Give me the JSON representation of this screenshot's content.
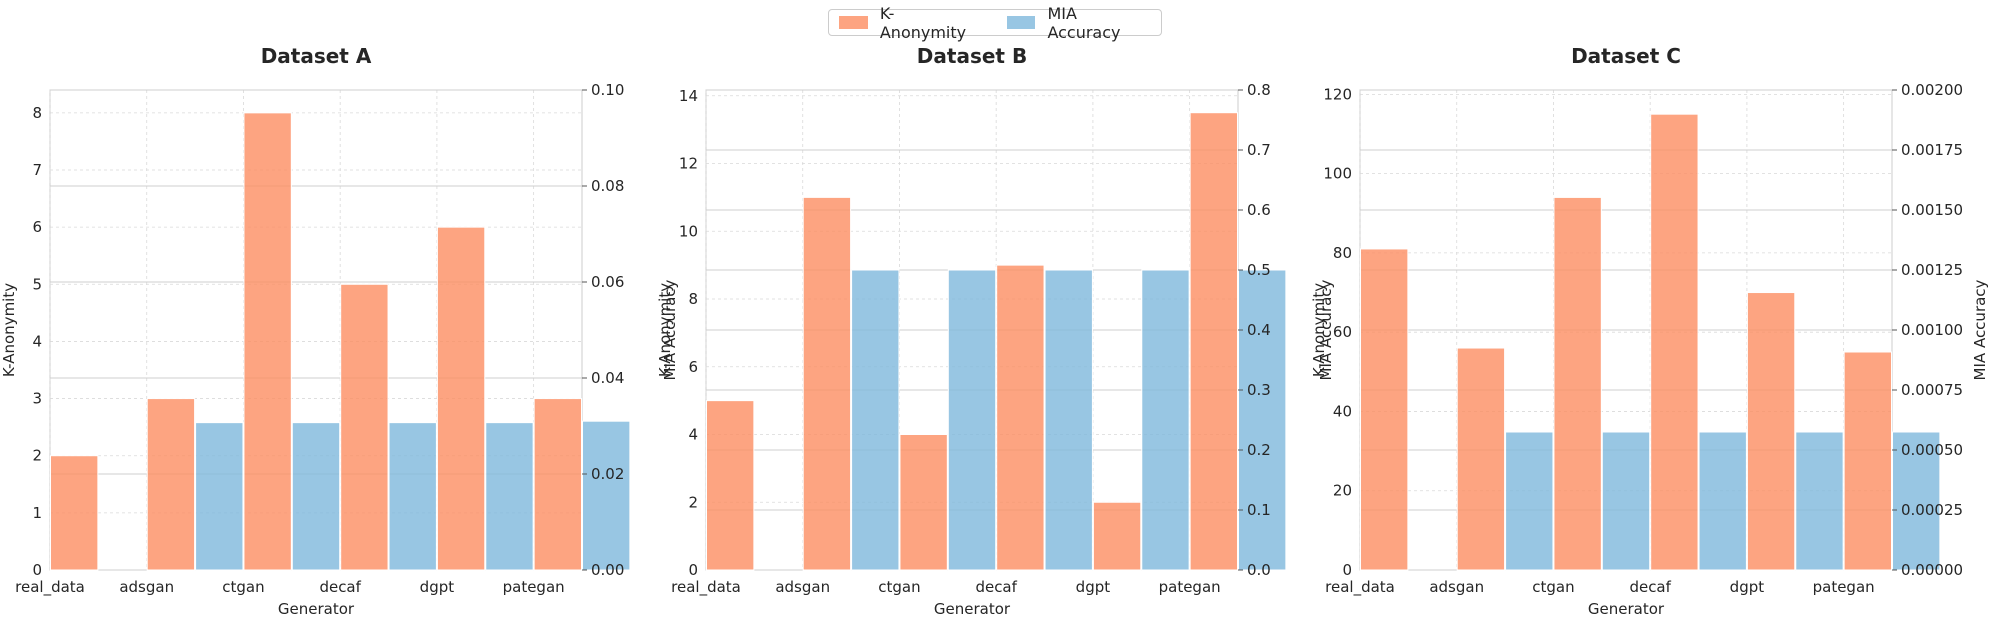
{
  "legend": {
    "k_label": "K-Anonymity",
    "mia_label": "MIA Accuracy",
    "placement": "top-center"
  },
  "colors": {
    "k_anonymity": "#fc8d62",
    "mia_accuracy": "#7eb8dc"
  },
  "chart_data": [
    {
      "type": "bar",
      "title": "Dataset A",
      "xlabel": "Generator",
      "ylabel": "K-Anonymity",
      "ylabel_right": "MIA Accuracy",
      "categories": [
        "real_data",
        "adsgan",
        "ctgan",
        "decaf",
        "dgpt",
        "pategan"
      ],
      "ylim": [
        0,
        8.4
      ],
      "yticks": [
        "0",
        "1",
        "2",
        "3",
        "4",
        "5",
        "6",
        "7",
        "8"
      ],
      "ylim_right": [
        0,
        0.1
      ],
      "yticks_right": [
        "0.00",
        "0.02",
        "0.04",
        "0.06",
        "0.08",
        "0.10"
      ],
      "grid": true,
      "series": [
        {
          "name": "K-Anonymity",
          "axis": "left",
          "values": [
            2,
            3,
            8,
            5,
            6,
            3
          ]
        },
        {
          "name": "MIA Accuracy",
          "axis": "right",
          "values": [
            null,
            0.0307,
            0.0307,
            0.0307,
            0.0307,
            0.031
          ]
        }
      ]
    },
    {
      "type": "bar",
      "title": "Dataset B",
      "xlabel": "Generator",
      "ylabel": "K-Anonymity",
      "ylabel_right": "MIA Accuracy",
      "categories": [
        "real_data",
        "adsgan",
        "ctgan",
        "decaf",
        "dgpt",
        "pategan"
      ],
      "ylim": [
        0,
        14.17
      ],
      "yticks": [
        "0",
        "2",
        "4",
        "6",
        "8",
        "10",
        "12",
        "14"
      ],
      "ylim_right": [
        0,
        0.8
      ],
      "yticks_right": [
        "0.0",
        "0.1",
        "0.2",
        "0.3",
        "0.4",
        "0.5",
        "0.6",
        "0.7",
        "0.8"
      ],
      "grid": true,
      "series": [
        {
          "name": "K-Anonymity",
          "axis": "left",
          "values": [
            5,
            11,
            4,
            9,
            2,
            13.5
          ]
        },
        {
          "name": "MIA Accuracy",
          "axis": "right",
          "values": [
            null,
            0.5,
            0.5,
            0.5,
            0.5,
            0.5
          ]
        }
      ]
    },
    {
      "type": "bar",
      "title": "Dataset C",
      "xlabel": "Generator",
      "ylabel": "K-Anonymity",
      "ylabel_right": "MIA Accuracy",
      "categories": [
        "real_data",
        "adsgan",
        "ctgan",
        "decaf",
        "dgpt",
        "pategan"
      ],
      "ylim": [
        0,
        121.1
      ],
      "yticks": [
        "0",
        "20",
        "40",
        "60",
        "80",
        "100",
        "120"
      ],
      "ylim_right": [
        0,
        0.002
      ],
      "yticks_right": [
        "0.00000",
        "0.00025",
        "0.00050",
        "0.00075",
        "0.00100",
        "0.00125",
        "0.00150",
        "0.00175",
        "0.00200"
      ],
      "grid": true,
      "series": [
        {
          "name": "K-Anonymity",
          "axis": "left",
          "values": [
            81,
            56,
            94,
            115,
            70,
            55
          ]
        },
        {
          "name": "MIA Accuracy",
          "axis": "right",
          "values": [
            null,
            0.000575,
            0.000575,
            0.000575,
            0.000575,
            0.000575
          ]
        }
      ]
    }
  ]
}
